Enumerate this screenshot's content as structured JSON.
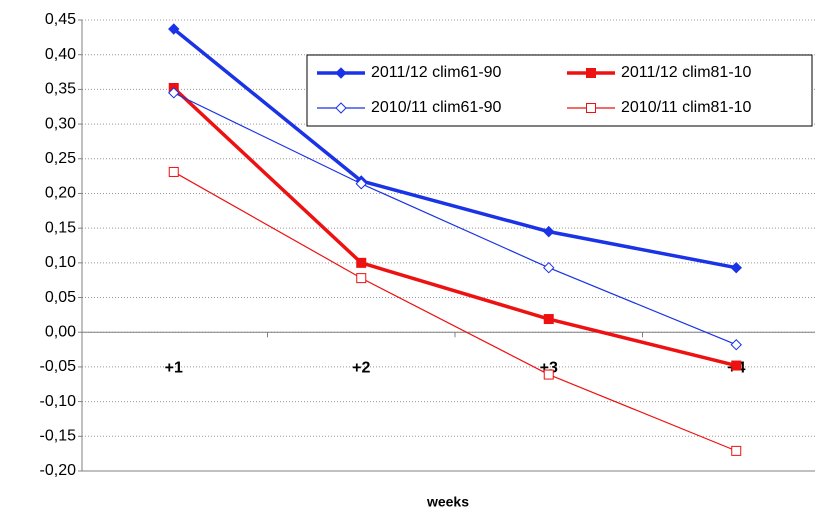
{
  "chart_data": {
    "type": "line",
    "x_label": "weeks",
    "categories": [
      "+1",
      "+2",
      "+3",
      "+4"
    ],
    "series": [
      {
        "name": "2011/12 clim61-90",
        "color": "#1a33e6",
        "marker": "diamond",
        "filled": true,
        "values": [
          0.437,
          0.218,
          0.145,
          0.093
        ]
      },
      {
        "name": "2011/12 clim81-10",
        "color": "#ee1111",
        "marker": "square",
        "filled": true,
        "values": [
          0.352,
          0.1,
          0.019,
          -0.048
        ]
      },
      {
        "name": "2010/11 clim61-90",
        "color": "#1a33e6",
        "marker": "diamond",
        "filled": false,
        "values": [
          0.345,
          0.214,
          0.093,
          -0.018
        ]
      },
      {
        "name": "2010/11 clim81-10",
        "color": "#ee1111",
        "marker": "square",
        "filled": false,
        "values": [
          0.231,
          0.078,
          -0.061,
          -0.171
        ]
      }
    ],
    "ylim": [
      -0.2,
      0.45
    ],
    "yticks": [
      {
        "value": -0.2,
        "label": "-0,20"
      },
      {
        "value": -0.15,
        "label": "-0,15"
      },
      {
        "value": -0.1,
        "label": "-0,10"
      },
      {
        "value": -0.05,
        "label": "-0,05"
      },
      {
        "value": 0,
        "label": "0,00"
      },
      {
        "value": 0.05,
        "label": "0,05"
      },
      {
        "value": 0.1,
        "label": "0,10"
      },
      {
        "value": 0.15,
        "label": "0,15"
      },
      {
        "value": 0.2,
        "label": "0,20"
      },
      {
        "value": 0.25,
        "label": "0,25"
      },
      {
        "value": 0.3,
        "label": "0,30"
      },
      {
        "value": 0.35,
        "label": "0,35"
      },
      {
        "value": 0.4,
        "label": "0,40"
      },
      {
        "value": 0.45,
        "label": "0,45"
      }
    ],
    "grid": true,
    "legend": "top-right"
  }
}
